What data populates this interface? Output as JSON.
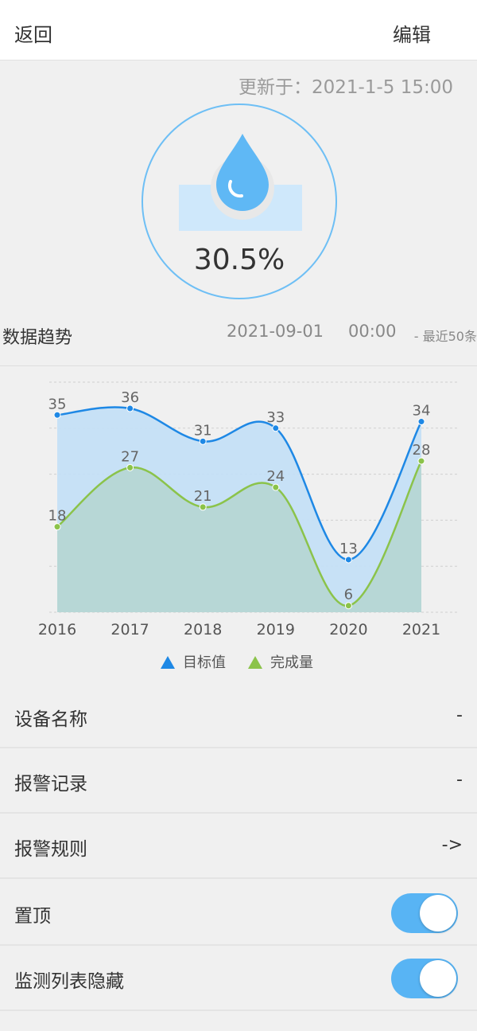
{
  "header": {
    "back_label": "返回",
    "edit_label": "编辑"
  },
  "status": {
    "updated_at": "更新于：2021-1-5 15:00",
    "percent": "30.5%"
  },
  "trend": {
    "title": "数据趋势",
    "date": "2021-09-01",
    "time": "00:00",
    "recent": "- 最近50条"
  },
  "chart_data": {
    "type": "area",
    "categories": [
      "2016",
      "2017",
      "2018",
      "2019",
      "2020",
      "2021"
    ],
    "series": [
      {
        "name": "目标值",
        "values": [
          35,
          36,
          31,
          33,
          13,
          34
        ],
        "color": "#1e88e5",
        "fill": "#c4dff5"
      },
      {
        "name": "完成量",
        "values": [
          18,
          27,
          21,
          24,
          6,
          28
        ],
        "color": "#8bc34a",
        "fill": "#b6d6d4"
      }
    ],
    "ylim": [
      5,
      40
    ],
    "grid": true,
    "legend": "bottom"
  },
  "settings": [
    {
      "label": "设备名称",
      "value": "-"
    },
    {
      "label": "报警记录",
      "value": "-"
    },
    {
      "label": "报警规则",
      "value": "->"
    },
    {
      "label": "置顶",
      "toggle": true
    },
    {
      "label": "监测列表隐藏",
      "toggle": true
    }
  ]
}
